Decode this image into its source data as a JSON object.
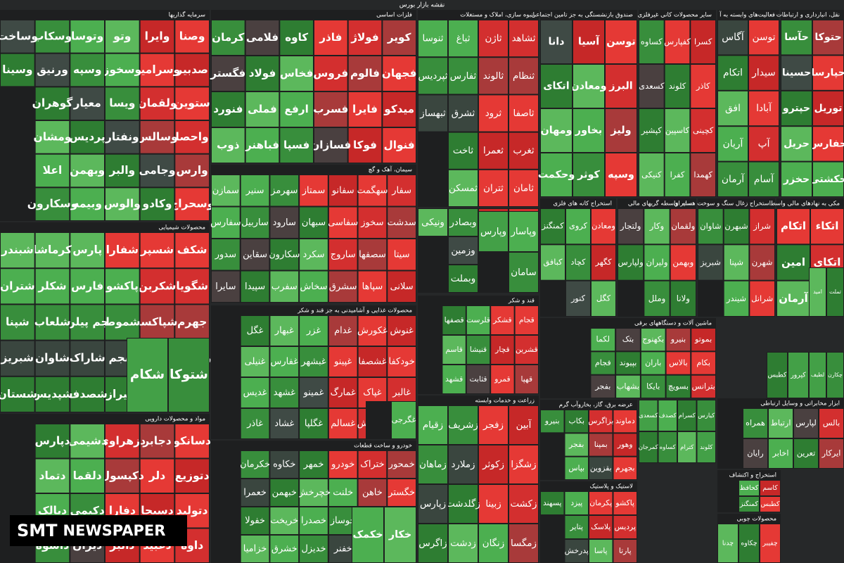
{
  "title": "نقشه بازار بورس",
  "watermark": {
    "brand": "SMT",
    "rest": "NEWSPAPER"
  },
  "sectors": [
    {
      "title": "سرمایه گذاریها",
      "tiles": [
        "وصنا",
        "صدبیر",
        "ستوین",
        "واحصا",
        "وارس",
        "وسحراج",
        "وایرا",
        "وسرامیو",
        "ولقمان",
        "وسالس",
        "وجامی",
        "وکادو",
        "وتو",
        "وسخوز",
        "ویسا",
        "ونفتار",
        "والبر",
        "والوس",
        "وتوسا",
        "وسپه",
        "معیار",
        "پردیس",
        "وبهمن",
        "وبیمه",
        "وسکاب",
        "ورنیق",
        "گوهران",
        "ومشان",
        "اعلا",
        "وسکارون",
        "وساخت",
        "وسینا"
      ]
    },
    {
      "title": "فلزات اساسی",
      "tiles": [
        "کویر",
        "فجهان",
        "میدکو",
        "فنوال",
        "فولاژ",
        "فالوم",
        "فایرا",
        "فوکا",
        "فاذر",
        "فروس",
        "فسرب",
        "فسازان",
        "کاوه",
        "فخاس",
        "ارفع",
        "فسپا",
        "فلامی",
        "فولاد",
        "فملی",
        "فباهنر",
        "کرمان",
        "فگستر",
        "فنورد",
        "ذوب"
      ]
    },
    {
      "title": "انبوه سازی، املاک و مستغلات",
      "tiles": [
        "ثشاهد",
        "ثنظام",
        "ثاصفا",
        "ثغرب",
        "ثامان",
        "ثاژن",
        "ثالوند",
        "ثرود",
        "ثعمرا",
        "ثتران",
        "ثباغ",
        "ثفارس",
        "ثشرق",
        "ثاخت",
        "ثمسکن",
        "ثنوسا",
        "ثپردیس",
        "ثبهساز"
      ]
    },
    {
      "title": "صندوق بازنشستگی به جز تامین اجتماعی",
      "tiles": [
        "توسن",
        "البرز",
        "ولیز",
        "وسپه",
        "آسیا",
        "ومعادن",
        "بخاور",
        "کوثر",
        "دانا",
        "اتکای",
        "ومهان",
        "وحکمت"
      ]
    },
    {
      "title": "سایر محصولات کانی غیرفلزی",
      "tiles": [
        "کسرا",
        "کاذر",
        "کچینی",
        "کهمدا",
        "کفپارس",
        "کلوند",
        "کاسپین",
        "کفرا",
        "کساوه",
        "کسعدی",
        "کپشیر",
        "کنیکی"
      ]
    },
    {
      "title": "فعالیت‌های وابسته به آ",
      "tiles": [
        "توسن",
        "سیدار",
        "آبادا",
        "آپ",
        "آسام",
        "آگاس",
        "اتکام",
        "افق",
        "آریان",
        "آرمان"
      ]
    },
    {
      "title": "نقل، انبارداری و ارتباطات",
      "tiles": [
        "حتوکا",
        "حپارسا",
        "توریل",
        "حفارس",
        "حکشتی",
        "حآسا",
        "حسینا",
        "حپترو",
        "حریل",
        "حخزر"
      ]
    },
    {
      "title": "سیمان، آهک و گچ",
      "tiles": [
        "سفار",
        "سدشت",
        "سیتا",
        "سلانی",
        "سهگمت",
        "سخوز",
        "سصفها",
        "سپاها",
        "سفانو",
        "سفاسی",
        "ساروج",
        "سشرق",
        "سمتاز",
        "سبهان",
        "سکرد",
        "سخاش",
        "سهرمز",
        "سارود",
        "سکارون",
        "سفرب",
        "سنیر",
        "ساربیل",
        "سقاین",
        "سپیدا",
        "سمازن",
        "سفارس",
        "سدور",
        "سایرا"
      ]
    },
    {
      "title": "محصولات شیمیایی",
      "tiles": [
        "شکف",
        "شگویا",
        "جهرم",
        "زاگرس",
        "دارا",
        "شسپر",
        "شکربن",
        "شپاکسا",
        "شفن",
        "نوری",
        "شفارا",
        "پاکشو",
        "شموط",
        "شجم",
        "شیراز",
        "پارس",
        "فارس",
        "جم پیلن",
        "شاراک",
        "شصدف",
        "کرماشا",
        "شکلر",
        "شلعاب",
        "شاوان",
        "شپدیس",
        "شبندر",
        "شتران",
        "شپنا",
        "شبریز",
        "شستان"
      ]
    },
    {
      "title": "محصولات غذایی و آشامیدنی به جز قند و شکر",
      "tiles": [
        "غنوش",
        "خودکفا",
        "غالبر",
        "غشوکو",
        "غکورش",
        "غشصفا",
        "غپاک",
        "غبهنوش",
        "غدام",
        "غپینو",
        "غمارگ",
        "غسالم",
        "غزر",
        "غبشهر",
        "غمینو",
        "غگلپا",
        "غبهار",
        "غفارس",
        "غشهد",
        "غشاد",
        "غگل",
        "غنیلی",
        "غدیس",
        "غاذر"
      ]
    },
    {
      "title": "مواد و محصولات دارویی",
      "tiles": [
        "دسانکو",
        "دتوزیع",
        "دتولید",
        "داوه",
        "دجابر",
        "دلر",
        "دسبحا",
        "دعبید",
        "دزهراوی",
        "دکپسول",
        "دفارا",
        "دالبر",
        "دشیمی",
        "دلقما",
        "دکیمی",
        "دیران",
        "دپارس",
        "دتماد",
        "دبالک",
        "داسوه"
      ]
    },
    {
      "title": "خودرو و ساخت قطعات",
      "tiles": [
        "خمحور",
        "خگستر",
        "خاور",
        "خپارس",
        "ختراک",
        "خاهن",
        "خزر",
        "خرینگ",
        "خودرو",
        "خلنت",
        "خوساز",
        "خفنر",
        "خمهر",
        "خچرخش",
        "خصدرا",
        "خدیزل",
        "خکاوه",
        "خبهمن",
        "خریخت",
        "خشرق",
        "خکرمان",
        "خعمرا",
        "خفولا",
        "خزامیا"
      ]
    },
    {
      "tiles": [
        "وخاور",
        "وکار",
        "ونوین",
        "وگردش",
        "سمایه",
        "وسینا",
        "وبصادر",
        "وزمین",
        "وبملت",
        "ونیکی"
      ]
    },
    {
      "title": "قند و شکر",
      "tiles": [
        "قجام",
        "قشرین",
        "قهپا",
        "قشکر",
        "قچار",
        "قمرو",
        "قلرست",
        "قنیشا",
        "قثابت",
        "قصفها",
        "قاسم",
        "قشهد"
      ]
    },
    {
      "title": "زراعت و خدمات وابسته",
      "tiles": [
        "آبین",
        "زشگزا",
        "زکشت",
        "زمگسا",
        "زفجر",
        "زکوثر",
        "زبینا",
        "زنگان",
        "زشریف",
        "زملارد",
        "زگلدشت",
        "زدشت",
        "زقیام",
        "زماهان",
        "زپارس",
        "زاگرس"
      ]
    },
    {
      "title": "استخراج کانه های فلزی",
      "tiles": [
        "ومعادن",
        "کگهر",
        "کگل",
        "کروی",
        "کچاد",
        "کنور",
        "کمنگنز",
        "کبافق"
      ]
    },
    {
      "title": "سایر واسطه گریهای مالی",
      "tiles": [
        "ولقمان",
        "وبهمن",
        "ولانا",
        "وکار",
        "ولیران",
        "وملل",
        "ولتجار",
        "ولپارس"
      ]
    },
    {
      "title": "استخراج زغال سنگ و سوخت هسته ای",
      "tiles": [
        "شراز",
        "شهرن",
        "شرانل",
        "شبهرن",
        "شپنا",
        "شیندر",
        "شاوان",
        "شبریز"
      ]
    },
    {
      "title": "مکی به نهادهای مالی واسط",
      "tiles": [
        "اتکاء",
        "اتکای",
        "کماوند",
        "اتکام",
        "امین",
        "آرمان"
      ]
    },
    {
      "title": "ماشین آلات و دستگاههای برقی",
      "tiles": [
        "بموتو",
        "بکام",
        "بترانس",
        "بنیرو",
        "بالاس",
        "بسویچ",
        "بکهنوج",
        "باران",
        "بایکا",
        "بتک",
        "بپیوند",
        "بشهاب",
        "لکما",
        "فجام",
        "بفجر"
      ]
    },
    {
      "title": "عرضه برق، گاز، بخاروآب گرم",
      "tiles": [
        "دماوند",
        "وهور",
        "بجهرم",
        "بزاگرس",
        "بمپنا",
        "بقزوین",
        "بکاب",
        "بفجر",
        "بپاس",
        "بنیرو"
      ]
    },
    {
      "tiles": [
        "کیارس",
        "کلوند",
        "کسرام",
        "کترام",
        "کصدف",
        "کساوه",
        "کسعدی",
        "کمرجان"
      ]
    },
    {
      "title": "ابزار مخابراتی و وسایل ارتباطی",
      "tiles": [
        "بالس",
        "ایرکار",
        "لپارس",
        "تعرین",
        "ارتباط",
        "اخابر",
        "همراه",
        "رایان"
      ]
    },
    {
      "title": "لاستیک و پلاستیک",
      "tiles": [
        "پاکشو",
        "پردیس",
        "پارتا",
        "پکرمان",
        "پلاسک",
        "پاسا",
        "پیزد",
        "پتایر",
        "پدرخش",
        "پسهند"
      ]
    },
    {
      "title": "استخراج و اکتشاف",
      "tiles": [
        "کاسم",
        "کطبس",
        "کحافظ",
        "کمنگنز"
      ]
    },
    {
      "title": "محصولات چوبی",
      "tiles": [
        "چفیبر",
        "چکاوه",
        "چدنا"
      ]
    },
    {
      "tiles": [
        "شتوکا",
        "شکام"
      ]
    },
    {
      "tiles": [
        "غگرجی"
      ]
    },
    {
      "tiles": [
        "خکار",
        "خکمک"
      ]
    },
    {
      "tiles": [
        "تملت",
        "امید"
      ]
    },
    {
      "tiles": [
        "کپرور",
        "کطبس"
      ]
    },
    {
      "tiles": [
        "چکارن",
        "لطیف"
      ]
    },
    {
      "tiles": [
        "وپاسار",
        "سامان",
        "وپارس"
      ]
    }
  ]
}
